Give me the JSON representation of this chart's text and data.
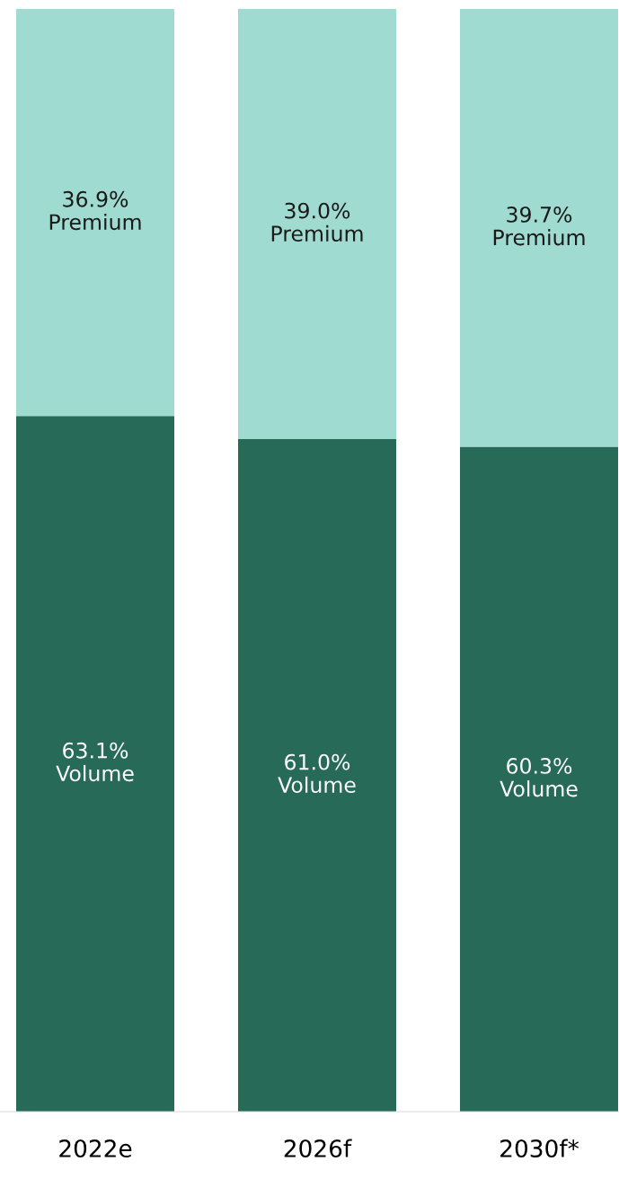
{
  "chart_data": {
    "type": "bar",
    "stacked": true,
    "categories": [
      "2022e",
      "2026f",
      "2030f*"
    ],
    "ylim": [
      0,
      100
    ],
    "tick_labels": "x",
    "series": [
      {
        "name": "Volume",
        "color": "#286a58",
        "values": [
          63.1,
          61.0,
          60.3
        ],
        "value_labels": [
          "63.1%",
          "61.0%",
          "60.3%"
        ]
      },
      {
        "name": "Premium",
        "color": "#9fdbd0",
        "values": [
          36.9,
          39.0,
          39.7
        ],
        "value_labels": [
          "36.9%",
          "39.0%",
          "39.7%"
        ]
      }
    ]
  }
}
